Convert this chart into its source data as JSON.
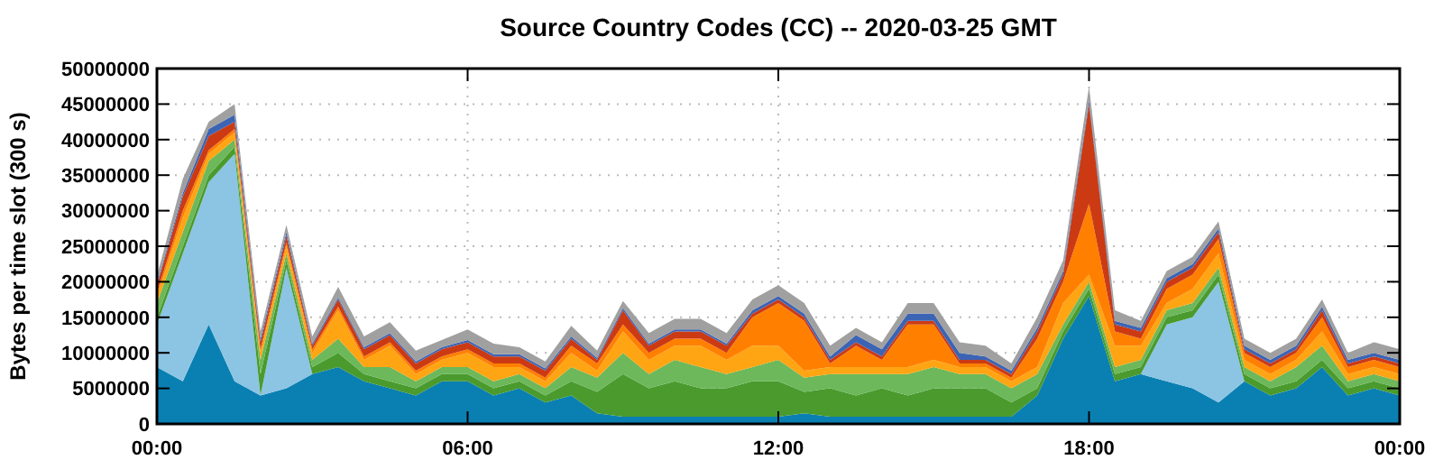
{
  "chart_data": {
    "type": "area",
    "stacked": true,
    "title": "Source Country Codes (CC) -- 2020-03-25 GMT",
    "ylabel": "Bytes per time slot (300 s)",
    "x": [
      0,
      0.5,
      1,
      1.5,
      2,
      2.5,
      3,
      3.5,
      4,
      4.5,
      5,
      5.5,
      6,
      6.5,
      7,
      7.5,
      8,
      8.5,
      9,
      9.5,
      10,
      10.5,
      11,
      11.5,
      12,
      12.5,
      13,
      13.5,
      14,
      14.5,
      15,
      15.5,
      16,
      16.5,
      17,
      17.5,
      18,
      18.5,
      19,
      19.5,
      20,
      20.5,
      21,
      21.5,
      22,
      22.5,
      23,
      23.5,
      24
    ],
    "xlim": [
      0,
      24
    ],
    "xticks": [
      {
        "value": 0,
        "label": "00:00"
      },
      {
        "value": 6,
        "label": "06:00"
      },
      {
        "value": 12,
        "label": "12:00"
      },
      {
        "value": 18,
        "label": "18:00"
      },
      {
        "value": 24,
        "label": "00:00"
      }
    ],
    "ylim": [
      0,
      50000000
    ],
    "yticks": [
      0,
      5000000,
      10000000,
      15000000,
      20000000,
      25000000,
      30000000,
      35000000,
      40000000,
      45000000,
      50000000
    ],
    "grid": true,
    "series": [
      {
        "color": "#0a80b2",
        "values": [
          8000000,
          6000000,
          14000000,
          6000000,
          4000000,
          5000000,
          7000000,
          8000000,
          6000000,
          5000000,
          4000000,
          6000000,
          6000000,
          4000000,
          5000000,
          3000000,
          4000000,
          1500000,
          1000000,
          1000000,
          1000000,
          1000000,
          1000000,
          1000000,
          1000000,
          1500000,
          1000000,
          1000000,
          1000000,
          1000000,
          1000000,
          1000000,
          1000000,
          1000000,
          4000000,
          12000000,
          18000000,
          6000000,
          7000000,
          6000000,
          5000000,
          3000000,
          6000000,
          4000000,
          5000000,
          8000000,
          4000000,
          5000000,
          4000000
        ]
      },
      {
        "color": "#8cc4e4",
        "values": [
          6000000,
          18000000,
          20000000,
          32000000,
          0,
          17000000,
          0,
          0,
          0,
          0,
          0,
          0,
          0,
          0,
          0,
          0,
          0,
          0,
          0,
          0,
          0,
          0,
          0,
          0,
          0,
          0,
          0,
          0,
          0,
          0,
          0,
          0,
          0,
          0,
          0,
          0,
          0,
          0,
          0,
          8000000,
          10000000,
          17000000,
          0,
          0,
          0,
          0,
          0,
          0,
          0
        ]
      },
      {
        "color": "#4a9a2e",
        "values": [
          1000000,
          1000000,
          1000000,
          1000000,
          3000000,
          1000000,
          1000000,
          2000000,
          1000000,
          1000000,
          1000000,
          1000000,
          1000000,
          1000000,
          1000000,
          1000000,
          2000000,
          3000000,
          6000000,
          4000000,
          5000000,
          4000000,
          4000000,
          5000000,
          5000000,
          3000000,
          4000000,
          3000000,
          4000000,
          3000000,
          4000000,
          4000000,
          4000000,
          2000000,
          1000000,
          1000000,
          1000000,
          1000000,
          1000000,
          1000000,
          1000000,
          1000000,
          1000000,
          1000000,
          1000000,
          1000000,
          1000000,
          1000000,
          1000000
        ]
      },
      {
        "color": "#6cb85a",
        "values": [
          2000000,
          2000000,
          2000000,
          1000000,
          2000000,
          1000000,
          1000000,
          2000000,
          1000000,
          2000000,
          1000000,
          1000000,
          1000000,
          1000000,
          1000000,
          1000000,
          2000000,
          2000000,
          3000000,
          2000000,
          3000000,
          3000000,
          2000000,
          2000000,
          3000000,
          2000000,
          2000000,
          3000000,
          2000000,
          3000000,
          3000000,
          2000000,
          2000000,
          2000000,
          2000000,
          1000000,
          1000000,
          1000000,
          1000000,
          1000000,
          1000000,
          1000000,
          1000000,
          1000000,
          2000000,
          2000000,
          1000000,
          1000000,
          1000000
        ]
      },
      {
        "color": "#ffa514",
        "values": [
          1000000,
          2000000,
          1000000,
          1000000,
          1000000,
          1000000,
          1000000,
          4000000,
          1000000,
          3000000,
          1000000,
          1000000,
          2000000,
          2000000,
          1000000,
          1000000,
          2000000,
          1000000,
          3000000,
          2000000,
          2000000,
          3000000,
          2000000,
          3000000,
          2000000,
          1000000,
          1000000,
          1000000,
          1000000,
          1000000,
          1000000,
          1000000,
          1000000,
          1000000,
          1000000,
          3000000,
          1000000,
          3000000,
          2000000,
          1000000,
          2000000,
          2000000,
          1000000,
          1000000,
          1000000,
          2000000,
          1000000,
          1000000,
          1000000
        ]
      },
      {
        "color": "#ff8000",
        "values": [
          500000,
          1000000,
          500000,
          500000,
          500000,
          500000,
          500000,
          500000,
          500000,
          500000,
          500000,
          500000,
          500000,
          500000,
          500000,
          500000,
          1000000,
          1000000,
          1000000,
          1000000,
          1000000,
          1000000,
          1000000,
          4000000,
          6000000,
          7000000,
          500000,
          3000000,
          1000000,
          6000000,
          5000000,
          500000,
          500000,
          500000,
          4000000,
          3000000,
          10000000,
          2000000,
          1000000,
          2000000,
          2000000,
          2000000,
          1000000,
          1000000,
          1000000,
          2000000,
          1000000,
          1000000,
          1000000
        ]
      },
      {
        "color": "#cc3a14",
        "values": [
          1000000,
          2000000,
          2000000,
          1000000,
          1000000,
          1000000,
          500000,
          1000000,
          1000000,
          1000000,
          1000000,
          1000000,
          1000000,
          1000000,
          1000000,
          1000000,
          1000000,
          500000,
          2000000,
          1000000,
          1000000,
          1000000,
          1000000,
          500000,
          500000,
          500000,
          500000,
          500000,
          500000,
          500000,
          500000,
          500000,
          500000,
          500000,
          1000000,
          1000000,
          14000000,
          1000000,
          1000000,
          1000000,
          1000000,
          1000000,
          500000,
          500000,
          500000,
          1000000,
          500000,
          500000,
          500000
        ]
      },
      {
        "color": "#3c64b4",
        "values": [
          300000,
          500000,
          1000000,
          1000000,
          500000,
          500000,
          300000,
          300000,
          300000,
          300000,
          300000,
          300000,
          300000,
          300000,
          300000,
          300000,
          300000,
          300000,
          300000,
          300000,
          300000,
          300000,
          300000,
          500000,
          500000,
          500000,
          500000,
          1000000,
          1000000,
          1000000,
          1000000,
          1000000,
          500000,
          500000,
          500000,
          500000,
          500000,
          500000,
          500000,
          500000,
          500000,
          500000,
          500000,
          500000,
          500000,
          500000,
          500000,
          500000,
          500000
        ]
      },
      {
        "color": "#a0a0a0",
        "values": [
          1000000,
          2000000,
          1000000,
          1500000,
          1000000,
          1000000,
          1000000,
          1500000,
          1500000,
          1500000,
          1500000,
          1000000,
          1500000,
          1500000,
          1000000,
          1000000,
          1500000,
          1000000,
          1000000,
          1500000,
          1500000,
          1500000,
          1500000,
          1500000,
          1500000,
          1500000,
          1500000,
          1000000,
          1000000,
          1500000,
          1500000,
          1500000,
          1500000,
          1000000,
          1500000,
          1500000,
          2000000,
          1500000,
          1000000,
          1000000,
          1000000,
          1000000,
          1000000,
          1000000,
          1000000,
          1000000,
          1000000,
          1500000,
          1500000
        ]
      }
    ]
  }
}
